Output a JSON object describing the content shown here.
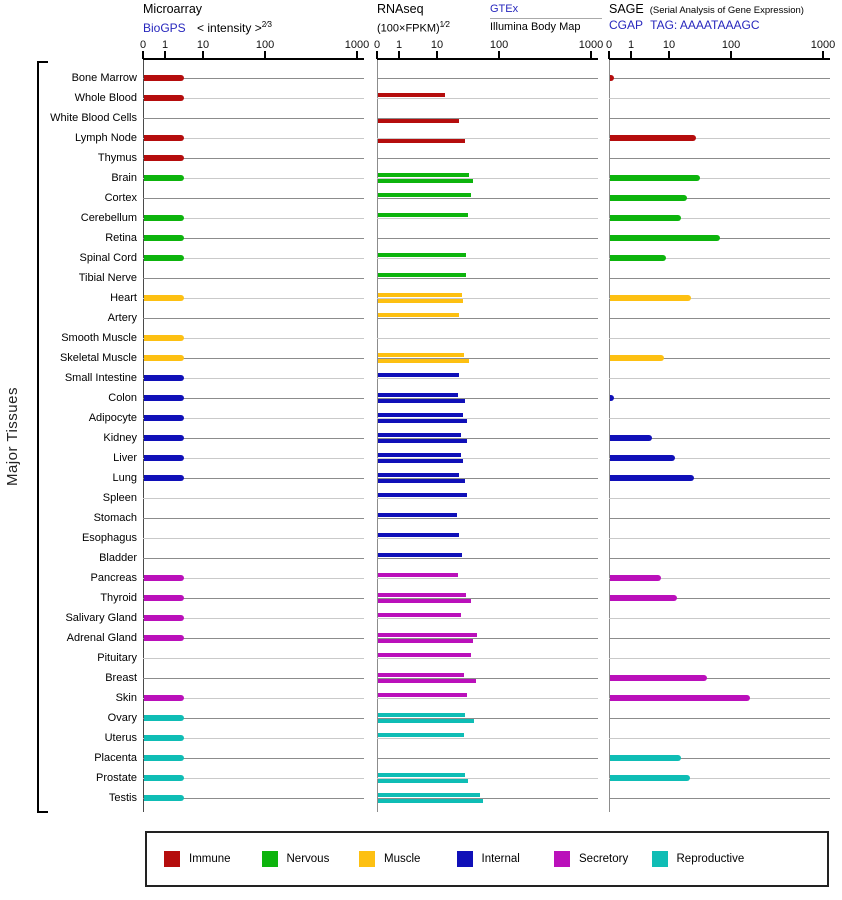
{
  "headers": {
    "microarray": {
      "title": "Microarray",
      "link": "BioGPS",
      "measure": "< intensity >",
      "exponent": "2⁄3"
    },
    "rnaseq": {
      "title": "RNAseq",
      "measure": "(100×FPKM)",
      "exponent": "1⁄2",
      "link": "GTEx",
      "sublabel": "Illumina Body Map"
    },
    "sage": {
      "title": "SAGE",
      "subtitle": "(Serial Analysis of Gene Expression)",
      "link": "CGAP",
      "tag": "TAG: AAAATAAAGC"
    }
  },
  "axis": {
    "ticks": [
      "0",
      "1",
      "10",
      "100",
      "1000"
    ]
  },
  "ylabel": "Major Tissues",
  "legend": [
    {
      "label": "Immune",
      "color": "#b50d0d"
    },
    {
      "label": "Nervous",
      "color": "#0db40d"
    },
    {
      "label": "Muscle",
      "color": "#fdc012"
    },
    {
      "label": "Internal",
      "color": "#1010b8"
    },
    {
      "label": "Secretory",
      "color": "#ba10ba"
    },
    {
      "label": "Reproductive",
      "color": "#0fbdb5"
    }
  ],
  "chart_data": {
    "type": "bar",
    "orientation": "horizontal",
    "x_scale": "log decades with ticks 0,1,10,100,1000 (widening decade spacing)",
    "panels": [
      "Microarray (BioGPS intensity^2/3)",
      "RNAseq GTEx (100×FPKM)^1/2",
      "RNAseq Illumina Body Map",
      "SAGE CGAP tag count"
    ],
    "rows": [
      {
        "tissue": "Bone Marrow",
        "group": "Immune",
        "microarray": 3,
        "sage": 0.2
      },
      {
        "tissue": "Whole Blood",
        "group": "Immune",
        "microarray": 3,
        "rnaseq_gtex": 13
      },
      {
        "tissue": "White Blood Cells",
        "group": "Immune",
        "rnaseq_illumina": 22
      },
      {
        "tissue": "Lymph Node",
        "group": "Immune",
        "microarray": 3,
        "rnaseq_illumina": 27,
        "sage": 26
      },
      {
        "tissue": "Thymus",
        "group": "Immune",
        "microarray": 3
      },
      {
        "tissue": "Brain",
        "group": "Nervous",
        "microarray": 3,
        "rnaseq_gtex": 32,
        "rnaseq_illumina": 37,
        "sage": 30
      },
      {
        "tissue": "Cortex",
        "group": "Nervous",
        "rnaseq_gtex": 34,
        "sage": 19
      },
      {
        "tissue": "Cerebellum",
        "group": "Nervous",
        "microarray": 3,
        "rnaseq_gtex": 30,
        "sage": 15
      },
      {
        "tissue": "Retina",
        "group": "Nervous",
        "microarray": 3,
        "sage": 63
      },
      {
        "tissue": "Spinal Cord",
        "group": "Nervous",
        "microarray": 3,
        "rnaseq_gtex": 28,
        "sage": 8
      },
      {
        "tissue": "Tibial Nerve",
        "group": "Nervous",
        "rnaseq_gtex": 28
      },
      {
        "tissue": "Heart",
        "group": "Muscle",
        "microarray": 3,
        "rnaseq_gtex": 24,
        "rnaseq_illumina": 25,
        "sage": 22
      },
      {
        "tissue": "Artery",
        "group": "Muscle",
        "rnaseq_gtex": 22
      },
      {
        "tissue": "Smooth Muscle",
        "group": "Muscle",
        "microarray": 3
      },
      {
        "tissue": "Skeletal Muscle",
        "group": "Muscle",
        "microarray": 3,
        "rnaseq_gtex": 26,
        "rnaseq_illumina": 32,
        "sage": 7
      },
      {
        "tissue": "Small Intestine",
        "group": "Internal",
        "microarray": 3,
        "rnaseq_gtex": 22
      },
      {
        "tissue": "Colon",
        "group": "Internal",
        "microarray": 3,
        "rnaseq_gtex": 21,
        "rnaseq_illumina": 27,
        "sage": 0.2
      },
      {
        "tissue": "Adipocyte",
        "group": "Internal",
        "microarray": 3,
        "rnaseq_gtex": 25,
        "rnaseq_illumina": 29
      },
      {
        "tissue": "Kidney",
        "group": "Internal",
        "microarray": 3,
        "rnaseq_gtex": 23,
        "rnaseq_illumina": 29,
        "sage": 3.4
      },
      {
        "tissue": "Liver",
        "group": "Internal",
        "microarray": 3,
        "rnaseq_gtex": 23,
        "rnaseq_illumina": 25,
        "sage": 12
      },
      {
        "tissue": "Lung",
        "group": "Internal",
        "microarray": 3,
        "rnaseq_gtex": 22,
        "rnaseq_illumina": 27,
        "sage": 24
      },
      {
        "tissue": "Spleen",
        "group": "Internal",
        "rnaseq_gtex": 29
      },
      {
        "tissue": "Stomach",
        "group": "Internal",
        "rnaseq_gtex": 20
      },
      {
        "tissue": "Esophagus",
        "group": "Internal",
        "rnaseq_gtex": 22
      },
      {
        "tissue": "Bladder",
        "group": "Internal",
        "rnaseq_gtex": 24
      },
      {
        "tissue": "Pancreas",
        "group": "Secretory",
        "microarray": 3,
        "rnaseq_gtex": 21,
        "sage": 5.8
      },
      {
        "tissue": "Thyroid",
        "group": "Secretory",
        "microarray": 3,
        "rnaseq_gtex": 28,
        "rnaseq_illumina": 34,
        "sage": 13
      },
      {
        "tissue": "Salivary Gland",
        "group": "Secretory",
        "microarray": 3,
        "rnaseq_gtex": 23
      },
      {
        "tissue": "Adrenal Gland",
        "group": "Secretory",
        "microarray": 3,
        "rnaseq_gtex": 43,
        "rnaseq_illumina": 37
      },
      {
        "tissue": "Pituitary",
        "group": "Secretory",
        "rnaseq_gtex": 34
      },
      {
        "tissue": "Breast",
        "group": "Secretory",
        "rnaseq_gtex": 26,
        "rnaseq_illumina": 41,
        "sage": 40
      },
      {
        "tissue": "Skin",
        "group": "Secretory",
        "microarray": 3,
        "rnaseq_gtex": 29,
        "sage": 158
      },
      {
        "tissue": "Ovary",
        "group": "Reproductive",
        "microarray": 3,
        "rnaseq_gtex": 27,
        "rnaseq_illumina": 38
      },
      {
        "tissue": "Uterus",
        "group": "Reproductive",
        "microarray": 3,
        "rnaseq_gtex": 26
      },
      {
        "tissue": "Placenta",
        "group": "Reproductive",
        "microarray": 3,
        "sage": 15
      },
      {
        "tissue": "Prostate",
        "group": "Reproductive",
        "microarray": 3,
        "rnaseq_gtex": 27,
        "rnaseq_illumina": 30,
        "sage": 21
      },
      {
        "tissue": "Testis",
        "group": "Reproductive",
        "microarray": 3,
        "rnaseq_gtex": 48,
        "rnaseq_illumina": 54
      }
    ]
  }
}
